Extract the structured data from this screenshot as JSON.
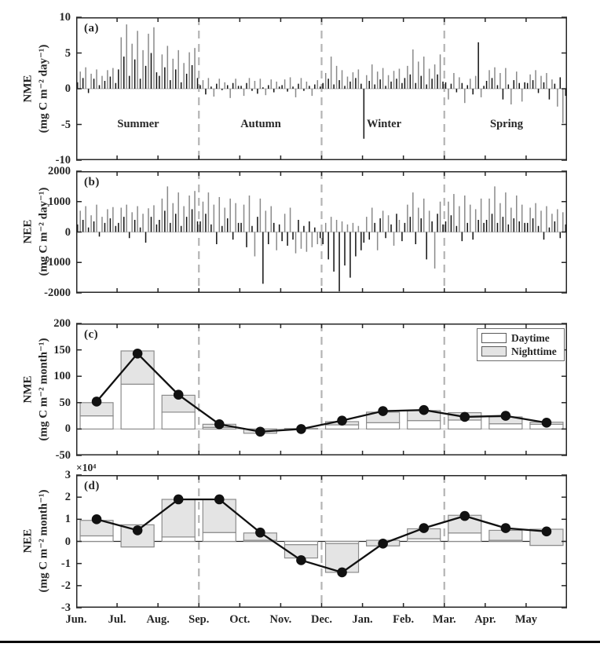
{
  "figure": {
    "months": [
      "Jun.",
      "Jul.",
      "Aug.",
      "Sep.",
      "Oct.",
      "Nov.",
      "Dec.",
      "Jan.",
      "Feb.",
      "Mar.",
      "Apr.",
      "May"
    ],
    "seasons": [
      "Summer",
      "Autumn",
      "Winter",
      "Spring"
    ],
    "colors": {
      "axis": "#262626",
      "bar_black": "#111111",
      "bar_gray": "#8a8a8a",
      "nighttime_fill": "#e4e4e4",
      "daytime_fill": "#ffffff",
      "bar_edge": "#8c8c8c",
      "zero_line_light": "#c8c8c8",
      "season_dash": "#b4b4b4",
      "line_marker": "#111111"
    }
  },
  "chart_data": [
    {
      "panel_label": "(a)",
      "type": "bar",
      "ylabel": "NME",
      "ylabel_units": "(mg C m⁻² day⁻¹)",
      "ylim": [
        -10,
        10
      ],
      "yticks": [
        10,
        5,
        0,
        -5,
        -10
      ],
      "ytick_labels": [
        "10",
        "5",
        "0",
        "-5",
        "-10"
      ],
      "x_categories": [
        "Jun.",
        "Jul.",
        "Aug.",
        "Sep.",
        "Oct.",
        "Nov.",
        "Dec.",
        "Jan.",
        "Feb.",
        "Mar.",
        "Apr.",
        "May"
      ],
      "season_annotations": [
        "Summer",
        "Autumn",
        "Winter",
        "Spring"
      ],
      "daily_values_by_month": [
        [
          0.9,
          2.4,
          1.5,
          3.0,
          -0.6,
          2.1,
          1.4,
          2.7,
          0.5,
          1.8,
          1.1,
          2.6,
          1.7,
          2.9,
          0.8
        ],
        [
          2.7,
          7.2,
          4.5,
          9.0,
          1.8,
          6.3,
          4.1,
          8.1,
          1.4,
          5.4,
          3.2,
          7.7,
          5.0,
          8.6,
          2.3
        ],
        [
          1.8,
          4.8,
          3.0,
          6.0,
          1.2,
          4.2,
          2.7,
          5.4,
          0.9,
          3.6,
          2.1,
          5.1,
          3.3,
          5.7,
          1.5
        ],
        [
          0.5,
          1.2,
          -0.8,
          1.5,
          0.3,
          -1.1,
          0.7,
          1.4,
          -0.2,
          0.9,
          0.5,
          -1.3,
          0.8,
          1.4,
          0.4
        ],
        [
          0.4,
          -1.0,
          0.8,
          1.5,
          -0.3,
          1.1,
          -0.7,
          1.4,
          0.2,
          -0.9,
          0.5,
          1.3,
          -0.5,
          1.0,
          0.3
        ],
        [
          0.5,
          1.3,
          -0.4,
          1.6,
          0.3,
          -1.2,
          0.7,
          1.5,
          -0.3,
          1.0,
          0.4,
          -1.0,
          0.6,
          1.2,
          0.3
        ],
        [
          0.8,
          2.2,
          1.4,
          4.5,
          0.6,
          3.2,
          1.2,
          2.6,
          0.4,
          1.7,
          1.0,
          2.3,
          1.5,
          2.7,
          0.7
        ],
        [
          -7.0,
          1.9,
          1.1,
          3.4,
          0.6,
          2.4,
          1.3,
          2.9,
          0.4,
          1.9,
          1.0,
          2.5,
          1.4,
          2.8,
          0.8
        ],
        [
          1.5,
          3.2,
          2.0,
          5.5,
          0.8,
          3.8,
          1.8,
          4.5,
          0.6,
          2.8,
          1.4,
          3.4,
          2.0,
          4.8,
          1.0
        ],
        [
          0.9,
          -1.5,
          0.7,
          2.2,
          -0.5,
          1.6,
          0.8,
          -2.0,
          0.5,
          1.4,
          -0.8,
          1.8,
          6.5,
          -1.2,
          0.4
        ],
        [
          1.1,
          2.6,
          1.5,
          3.0,
          0.5,
          2.2,
          -1.5,
          2.9,
          0.6,
          -2.2,
          1.2,
          2.4,
          0.8,
          -1.8,
          0.9
        ],
        [
          0.8,
          2.0,
          1.2,
          2.6,
          -0.6,
          1.8,
          0.9,
          2.2,
          -1.5,
          1.3,
          0.7,
          -2.5,
          1.6,
          -4.8,
          -1.0
        ]
      ]
    },
    {
      "panel_label": "(b)",
      "type": "bar",
      "ylabel": "NEE",
      "ylabel_units": "(mg C m⁻² day⁻¹)",
      "ylim": [
        -2000,
        2000
      ],
      "yticks": [
        2000,
        1000,
        0,
        -1000,
        -2000
      ],
      "ytick_labels": [
        "2000",
        "1000",
        "0",
        "-1000",
        "-2000"
      ],
      "x_categories": [
        "Jun.",
        "Jul.",
        "Aug.",
        "Sep.",
        "Oct.",
        "Nov.",
        "Dec.",
        "Jan.",
        "Feb.",
        "Mar.",
        "Apr.",
        "May"
      ],
      "daily_values_by_month": [
        [
          250,
          700,
          400,
          850,
          150,
          550,
          350,
          900,
          -150,
          500,
          300,
          750,
          450,
          820,
          200
        ],
        [
          300,
          800,
          500,
          900,
          -200,
          650,
          400,
          850,
          150,
          600,
          -350,
          780,
          500,
          880,
          250
        ],
        [
          400,
          1100,
          700,
          1500,
          300,
          950,
          600,
          1300,
          200,
          850,
          500,
          1200,
          750,
          1350,
          350
        ],
        [
          350,
          1000,
          600,
          1300,
          250,
          900,
          -400,
          1150,
          200,
          800,
          450,
          1100,
          -250,
          950,
          300
        ],
        [
          300,
          900,
          -500,
          1200,
          200,
          -800,
          500,
          1100,
          -1700,
          700,
          -400,
          850,
          300,
          -600,
          250
        ],
        [
          -300,
          600,
          -450,
          800,
          -250,
          -700,
          400,
          -550,
          200,
          -650,
          350,
          -500,
          150,
          -400,
          -200
        ],
        [
          -400,
          300,
          -900,
          500,
          -1300,
          400,
          -1950,
          350,
          -1100,
          250,
          -1500,
          300,
          -800,
          200,
          -600
        ],
        [
          -350,
          500,
          -250,
          800,
          300,
          -600,
          450,
          700,
          -200,
          550,
          250,
          -450,
          600,
          400,
          -300
        ],
        [
          300,
          900,
          500,
          1300,
          -400,
          800,
          450,
          1100,
          -900,
          700,
          350,
          -1200,
          600,
          1000,
          250
        ],
        [
          350,
          1000,
          550,
          1250,
          200,
          850,
          -300,
          1200,
          300,
          900,
          -250,
          750,
          400,
          1100,
          300
        ],
        [
          400,
          1100,
          600,
          1500,
          300,
          950,
          500,
          1300,
          250,
          800,
          450,
          1200,
          350,
          900,
          300
        ],
        [
          300,
          800,
          450,
          950,
          200,
          700,
          -250,
          850,
          150,
          600,
          350,
          750,
          -200,
          650,
          250
        ]
      ]
    },
    {
      "panel_label": "(c)",
      "type": "bar+line",
      "ylabel": "NME",
      "ylabel_units": "(mg C m⁻² month⁻¹)",
      "ylim": [
        -50,
        200
      ],
      "yticks": [
        200,
        150,
        100,
        50,
        0,
        -50
      ],
      "ytick_labels": [
        "200",
        "150",
        "100",
        "50",
        "0",
        "-50"
      ],
      "legend": [
        "Daytime",
        "Nighttime"
      ],
      "x_categories": [
        "Jun.",
        "Jul.",
        "Aug.",
        "Sep.",
        "Oct.",
        "Nov.",
        "Dec.",
        "Jan.",
        "Feb.",
        "Mar.",
        "Apr.",
        "May"
      ],
      "daytime": [
        25,
        85,
        32,
        3,
        0,
        0,
        8,
        12,
        16,
        17,
        10,
        9
      ],
      "nighttime": [
        25,
        63,
        32,
        6,
        -8,
        1,
        6,
        20,
        19,
        14,
        13,
        4
      ],
      "monthly_total_line": [
        52,
        143,
        65,
        9,
        -5,
        0,
        16,
        34,
        36,
        23,
        25,
        12
      ]
    },
    {
      "panel_label": "(d)",
      "type": "bar+line",
      "multiplier": "×10⁴",
      "ylabel": "NEE",
      "ylabel_units": "(mg C m⁻² month⁻¹)",
      "ylim": [
        -3,
        3
      ],
      "yticks": [
        3,
        2,
        1,
        0,
        -1,
        -2,
        -3
      ],
      "ytick_labels": [
        "3",
        "2",
        "1",
        "0",
        "-1",
        "-2",
        "-3"
      ],
      "x_categories": [
        "Jun.",
        "Jul.",
        "Aug.",
        "Sep.",
        "Oct.",
        "Nov.",
        "Dec.",
        "Jan.",
        "Feb.",
        "Mar.",
        "Apr.",
        "May"
      ],
      "daytime": [
        0.25,
        -0.25,
        0.2,
        0.4,
        0.05,
        -0.15,
        -0.1,
        -0.2,
        0.12,
        0.38,
        0.05,
        -0.18
      ],
      "nighttime": [
        0.7,
        1.0,
        1.7,
        1.5,
        0.33,
        -0.6,
        -1.3,
        0.25,
        0.45,
        0.8,
        0.45,
        0.73
      ],
      "monthly_total_line": [
        1.0,
        0.5,
        1.9,
        1.9,
        0.4,
        -0.85,
        -1.4,
        -0.1,
        0.6,
        1.15,
        0.6,
        0.45
      ]
    }
  ]
}
